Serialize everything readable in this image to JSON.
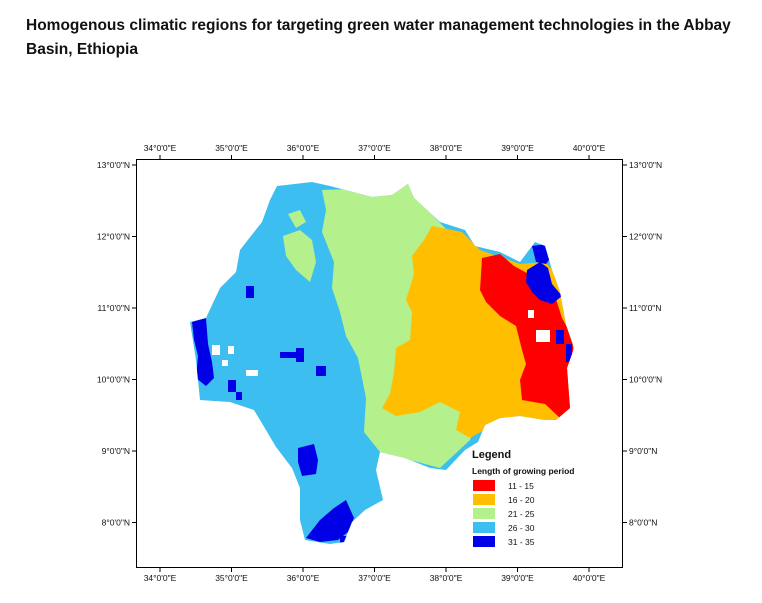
{
  "title": "Homogenous climatic regions for targeting green water management technologies in the Abbay Basin, Ethiopia",
  "map": {
    "lon_labels": [
      "34°0'0\"E",
      "35°0'0\"E",
      "36°0'0\"E",
      "37°0'0\"E",
      "38°0'0\"E",
      "39°0'0\"E",
      "40°0'0\"E"
    ],
    "lat_labels": [
      "13°0'0\"N",
      "12°0'0\"N",
      "11°0'0\"N",
      "10°0'0\"N",
      "9°0'0\"N",
      "8°0'0\"N"
    ]
  },
  "legend": {
    "title": "Legend",
    "subtitle": "Length of growing period",
    "items": [
      {
        "label": "11 - 15",
        "color": "#ff0000"
      },
      {
        "label": "16 - 20",
        "color": "#ffbf00"
      },
      {
        "label": "21 - 25",
        "color": "#b4f08c"
      },
      {
        "label": "26 - 30",
        "color": "#3cbef0"
      },
      {
        "label": "31 - 35",
        "color": "#0000e6"
      }
    ]
  }
}
